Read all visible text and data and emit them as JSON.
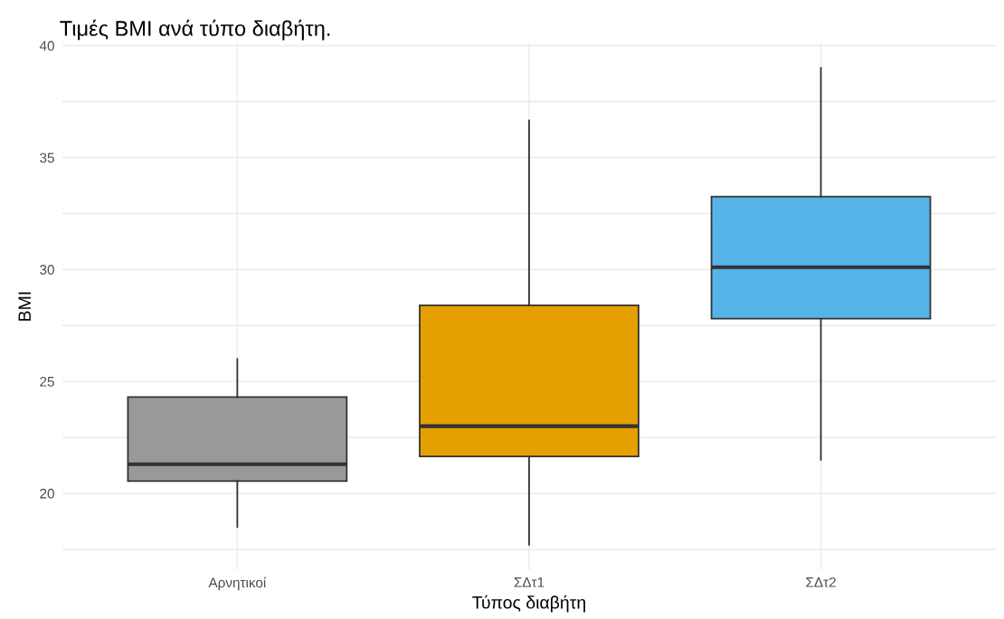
{
  "chart_data": {
    "type": "box",
    "title": "Τιμές BMI ανά τύπο διαβήτη.",
    "xlabel": "Τύπος διαβήτη",
    "ylabel": "BMI",
    "categories": [
      "Αρνητικοί",
      "ΣΔτ1",
      "ΣΔτ2"
    ],
    "colors": [
      "#999999",
      "#e69f00",
      "#56b4e9"
    ],
    "boxes": [
      {
        "low": 18.5,
        "q1": 20.55,
        "median": 21.3,
        "q3": 24.3,
        "high": 26.0
      },
      {
        "low": 17.7,
        "q1": 21.65,
        "median": 23.0,
        "q3": 28.4,
        "high": 36.65
      },
      {
        "low": 21.5,
        "q1": 27.8,
        "median": 30.1,
        "q3": 33.25,
        "high": 39.0
      }
    ],
    "ylim": [
      16.6,
      40.1
    ],
    "yticks": [
      {
        "value": 17.5,
        "label": null
      },
      20,
      {
        "value": 22.5,
        "label": null
      },
      25,
      {
        "value": 27.5,
        "label": null
      },
      30,
      {
        "value": 32.5,
        "label": null
      },
      35,
      {
        "value": 37.5,
        "label": null
      },
      40
    ],
    "grid": true,
    "legend": false
  }
}
